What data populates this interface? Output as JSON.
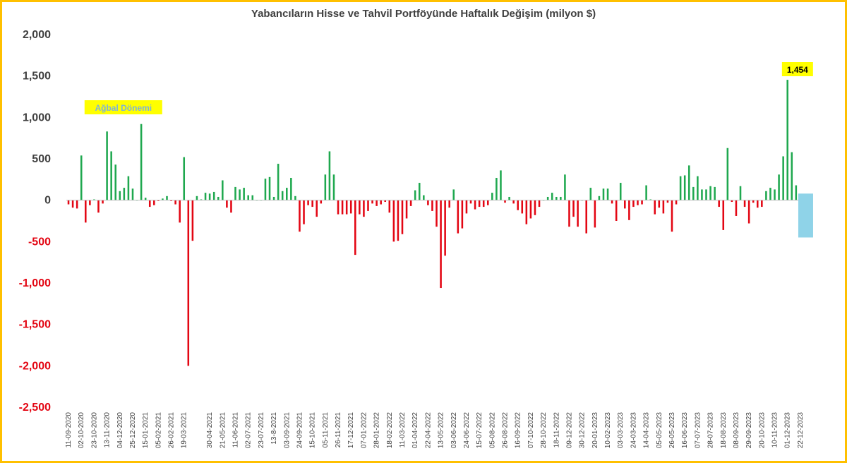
{
  "colors": {
    "positive": "#1fa84f",
    "negative": "#e30613",
    "axis_positive_label": "#404040",
    "axis_negative_label": "#e30613",
    "frame": "#ffc000",
    "highlight_bg": "#ffff00",
    "last_week_box": "#8fd3e8"
  },
  "chart_data": {
    "type": "bar",
    "title": "Yabancıların Hisse ve Tahvil Portföyünde Haftalık Değişim (milyon $)",
    "xlabel": "",
    "ylabel": "",
    "ylim": [
      -2500,
      2000
    ],
    "yticks": [
      {
        "value": 2000,
        "label": "2,000"
      },
      {
        "value": 1500,
        "label": "1,500"
      },
      {
        "value": 1000,
        "label": "1,000"
      },
      {
        "value": 500,
        "label": "500"
      },
      {
        "value": 0,
        "label": "0"
      },
      {
        "value": -500,
        "label": "-500"
      },
      {
        "value": -1000,
        "label": "-1,000"
      },
      {
        "value": -1500,
        "label": "-1,500"
      },
      {
        "value": -2000,
        "label": "-2,000"
      },
      {
        "value": -2500,
        "label": "-2,500"
      }
    ],
    "tick_labels": [
      {
        "index": 0,
        "label": "11-09-2020"
      },
      {
        "index": 3,
        "label": "02-10-2020"
      },
      {
        "index": 6,
        "label": "23-10-2020"
      },
      {
        "index": 9,
        "label": "13-11-2020"
      },
      {
        "index": 12,
        "label": "04-12-2020"
      },
      {
        "index": 15,
        "label": "25-12-2020"
      },
      {
        "index": 18,
        "label": "15-01-2021"
      },
      {
        "index": 21,
        "label": "05-02-2021"
      },
      {
        "index": 24,
        "label": "26-02-2021"
      },
      {
        "index": 27,
        "label": "19-03-2021"
      },
      {
        "index": 33,
        "label": "30-04-2021"
      },
      {
        "index": 36,
        "label": "21-05-2021"
      },
      {
        "index": 39,
        "label": "11-06-2021"
      },
      {
        "index": 42,
        "label": "02-07-2021"
      },
      {
        "index": 45,
        "label": "23-07-2021"
      },
      {
        "index": 48,
        "label": "13-8-2021"
      },
      {
        "index": 51,
        "label": "03-09-2021"
      },
      {
        "index": 54,
        "label": "24-09-2021"
      },
      {
        "index": 57,
        "label": "15-10-2021"
      },
      {
        "index": 60,
        "label": "05-11-2021"
      },
      {
        "index": 63,
        "label": "26-11-2021"
      },
      {
        "index": 66,
        "label": "17-12-2021"
      },
      {
        "index": 69,
        "label": "07-01-2022"
      },
      {
        "index": 72,
        "label": "28-01-2022"
      },
      {
        "index": 75,
        "label": "18-02-2022"
      },
      {
        "index": 78,
        "label": "11-03-2022"
      },
      {
        "index": 81,
        "label": "01-04-2022"
      },
      {
        "index": 84,
        "label": "22-04-2022"
      },
      {
        "index": 87,
        "label": "13-05-2022"
      },
      {
        "index": 90,
        "label": "03-06-2022"
      },
      {
        "index": 93,
        "label": "24-06-2022"
      },
      {
        "index": 96,
        "label": "15-07-2022"
      },
      {
        "index": 99,
        "label": "05-08-2022"
      },
      {
        "index": 102,
        "label": "26-08-2022"
      },
      {
        "index": 105,
        "label": "16-09-2022"
      },
      {
        "index": 108,
        "label": "07-10-2022"
      },
      {
        "index": 111,
        "label": "28-10-2022"
      },
      {
        "index": 114,
        "label": "18-11-2022"
      },
      {
        "index": 117,
        "label": "09-12-2022"
      },
      {
        "index": 120,
        "label": "30-12-2022"
      },
      {
        "index": 123,
        "label": "20-01-2023"
      },
      {
        "index": 126,
        "label": "10-02-2023"
      },
      {
        "index": 129,
        "label": "03-03-2023"
      },
      {
        "index": 132,
        "label": "24-03-2023"
      },
      {
        "index": 135,
        "label": "14-04-2023"
      },
      {
        "index": 138,
        "label": "05-05-2023"
      },
      {
        "index": 141,
        "label": "26-05-2023"
      },
      {
        "index": 144,
        "label": "16-06-2023"
      },
      {
        "index": 147,
        "label": "07-07-2023"
      },
      {
        "index": 150,
        "label": "28-07-2023"
      },
      {
        "index": 153,
        "label": "18-08-2023"
      },
      {
        "index": 156,
        "label": "08-09-2023"
      },
      {
        "index": 159,
        "label": "29-09-2023"
      },
      {
        "index": 162,
        "label": "20-10-2023"
      },
      {
        "index": 165,
        "label": "10-11-2023"
      },
      {
        "index": 168,
        "label": "01-12-2023"
      },
      {
        "index": 171,
        "label": "22-12-2023"
      }
    ],
    "values": [
      -50,
      -90,
      -100,
      540,
      -270,
      -60,
      10,
      -150,
      -40,
      830,
      590,
      430,
      110,
      150,
      290,
      140,
      0,
      920,
      30,
      -80,
      -60,
      -10,
      20,
      50,
      -10,
      -50,
      -270,
      520,
      -2000,
      -490,
      50,
      10,
      90,
      80,
      100,
      40,
      240,
      -90,
      -150,
      160,
      130,
      150,
      60,
      60,
      0,
      0,
      260,
      280,
      40,
      440,
      110,
      150,
      270,
      50,
      -380,
      -290,
      -60,
      -80,
      -200,
      -40,
      310,
      590,
      310,
      -170,
      -170,
      -170,
      -160,
      -660,
      -170,
      -200,
      -130,
      -40,
      -70,
      -50,
      -20,
      -150,
      -500,
      -490,
      -410,
      -220,
      -70,
      120,
      210,
      60,
      -60,
      -130,
      -320,
      -1060,
      -670,
      -90,
      130,
      -400,
      -340,
      -160,
      -40,
      -110,
      -80,
      -80,
      -60,
      90,
      270,
      360,
      -30,
      40,
      -40,
      -120,
      -160,
      -290,
      -220,
      -180,
      -80,
      0,
      40,
      90,
      40,
      40,
      310,
      -320,
      -200,
      -320,
      0,
      -400,
      150,
      -330,
      50,
      140,
      140,
      -40,
      -250,
      210,
      -100,
      -240,
      -80,
      -60,
      -50,
      180,
      10,
      -170,
      -90,
      -160,
      -30,
      -380,
      -50,
      290,
      300,
      420,
      160,
      290,
      130,
      130,
      170,
      160,
      -80,
      -360,
      630,
      -20,
      -190,
      170,
      -80,
      -280,
      -30,
      -90,
      -80,
      110,
      150,
      130,
      310,
      530,
      1454,
      580,
      180,
      50,
      -350
    ],
    "annotations": [
      {
        "label": "Ağbal Dönemi",
        "index": 12
      },
      {
        "label": "1,454",
        "index": 170
      }
    ],
    "grid": false
  }
}
